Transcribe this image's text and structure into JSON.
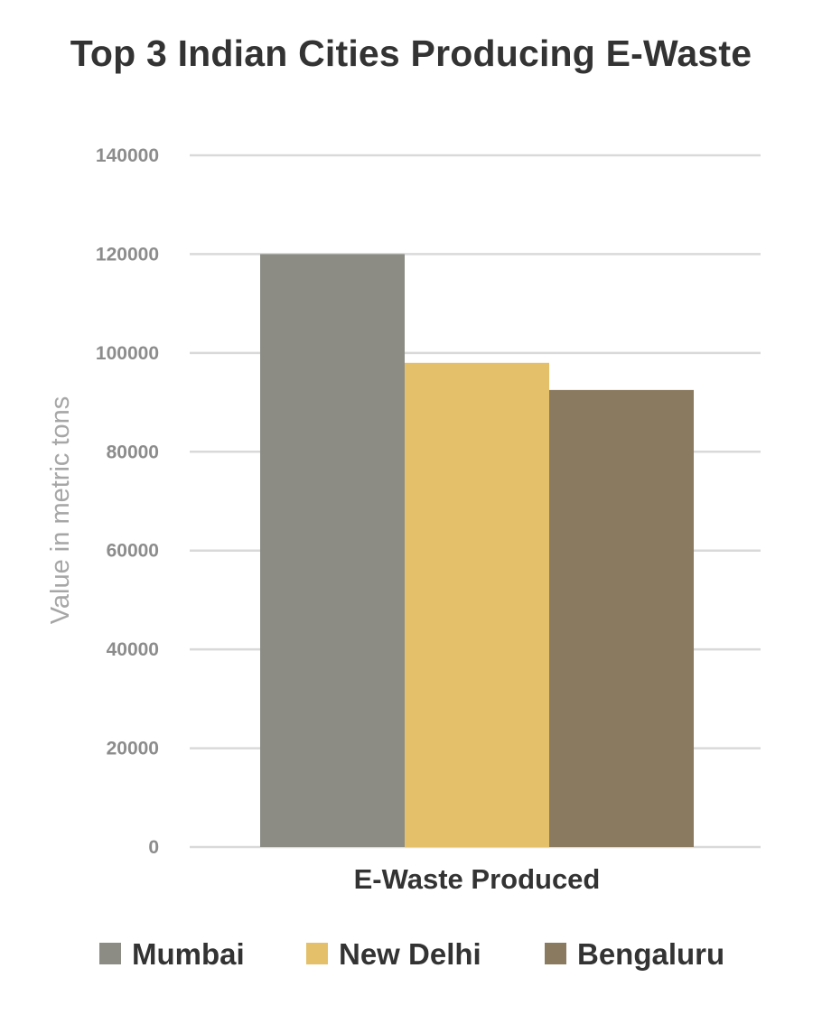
{
  "chart_data": {
    "type": "bar",
    "title": "Top 3 Indian Cities Producing E-Waste",
    "xlabel": "",
    "ylabel": "Value in metric tons",
    "categories": [
      "E-Waste Produced"
    ],
    "series": [
      {
        "name": "Mumbai",
        "values": [
          120000
        ],
        "color": "#8c8c85"
      },
      {
        "name": "New Delhi",
        "values": [
          98000
        ],
        "color": "#e4c06a"
      },
      {
        "name": "Bengaluru",
        "values": [
          92500
        ],
        "color": "#8a7a5f"
      }
    ],
    "ylim": [
      0,
      140000
    ],
    "yticks": [
      "0",
      "20000",
      "40000",
      "60000",
      "80000",
      "100000",
      "120000",
      "140000"
    ],
    "grid": true,
    "legend_position": "bottom"
  }
}
